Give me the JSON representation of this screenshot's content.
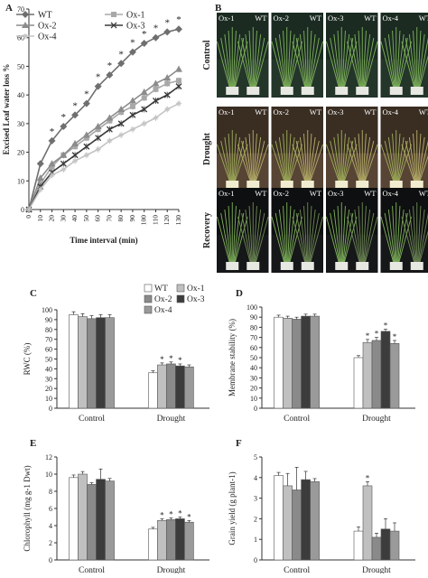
{
  "panels": {
    "A": "A",
    "B": "B",
    "C": "C",
    "D": "D",
    "E": "E",
    "F": "F"
  },
  "photo_panel": {
    "rows": [
      {
        "label": "Control",
        "pairs": [
          [
            "Ox-1",
            "WT"
          ],
          [
            "Ox-2",
            "WT"
          ],
          [
            "Ox-3",
            "WT"
          ],
          [
            "Ox-4",
            "WT"
          ]
        ]
      },
      {
        "label": "Drought",
        "pairs": [
          [
            "Ox-1",
            "WT"
          ],
          [
            "Ox-2",
            "WT"
          ],
          [
            "Ox-3",
            "WT"
          ],
          [
            "Ox-4",
            "WT"
          ]
        ]
      },
      {
        "label": "Recovery",
        "pairs": [
          [
            "Ox-1",
            "WT"
          ],
          [
            "Ox-2",
            "WT"
          ],
          [
            "Ox-3",
            "WT"
          ],
          [
            "Ox-4",
            "WT"
          ]
        ]
      }
    ]
  },
  "chart_data": [
    {
      "id": "A",
      "type": "line",
      "xlabel": "Time interval (min)",
      "ylabel": "Excised Leaf water loss %",
      "xlim": [
        0,
        130
      ],
      "ylim": [
        0,
        70
      ],
      "x": [
        0,
        10,
        20,
        30,
        40,
        50,
        60,
        70,
        80,
        90,
        100,
        110,
        120,
        130
      ],
      "xticks": [
        "0",
        "10",
        "20",
        "30",
        "40",
        "50",
        "60",
        "70",
        "80",
        "90",
        "100",
        "110",
        "120",
        "130"
      ],
      "yticks": [
        0,
        10,
        20,
        30,
        40,
        50,
        60,
        70
      ],
      "series": [
        {
          "name": "WT",
          "color": "#6f6f6f",
          "marker": "diamond",
          "values": [
            0,
            16,
            24,
            29,
            33,
            37,
            43,
            47,
            51,
            55,
            58,
            60,
            62,
            63
          ]
        },
        {
          "name": "Ox-1",
          "color": "#a8a8a8",
          "marker": "square",
          "values": [
            0,
            9,
            15,
            19,
            22,
            25,
            28,
            31,
            34,
            36,
            39,
            42,
            44,
            45
          ]
        },
        {
          "name": "Ox-2",
          "color": "#8c8c8c",
          "marker": "triangle",
          "values": [
            0,
            11,
            16,
            19,
            23,
            26,
            29,
            32,
            35,
            38,
            41,
            44,
            46,
            49
          ]
        },
        {
          "name": "Ox-3",
          "color": "#3a3a3a",
          "marker": "x",
          "values": [
            0,
            8,
            13,
            16,
            19,
            22,
            25,
            28,
            30,
            33,
            35,
            38,
            40,
            43
          ]
        },
        {
          "name": "Ox-4",
          "color": "#c4c4c4",
          "marker": "star",
          "values": [
            0,
            7,
            12,
            14,
            17,
            19,
            21,
            24,
            26,
            28,
            30,
            32,
            35,
            37
          ]
        }
      ],
      "annotations": [
        "*",
        "*",
        "*",
        "*",
        "*",
        "*",
        "*",
        "*",
        "*",
        "*",
        "*",
        "*"
      ]
    },
    {
      "id": "C",
      "type": "bar",
      "ylabel": "RWC (%)",
      "categories": [
        "Control",
        "Drought"
      ],
      "ylim": [
        0,
        100
      ],
      "yticks": [
        0,
        10,
        20,
        30,
        40,
        50,
        60,
        70,
        80,
        90,
        100
      ],
      "series": [
        {
          "name": "WT",
          "color": "#ffffff",
          "values": [
            95,
            36
          ]
        },
        {
          "name": "Ox-1",
          "color": "#c0c0c0",
          "values": [
            93,
            44
          ]
        },
        {
          "name": "Ox-2",
          "color": "#8a8a8a",
          "values": [
            91,
            45
          ]
        },
        {
          "name": "Ox-3",
          "color": "#3c3c3c",
          "values": [
            92,
            43
          ]
        },
        {
          "name": "Ox-4",
          "color": "#9a9a9a",
          "values": [
            92,
            42
          ]
        }
      ],
      "errors": [
        [
          3,
          2
        ],
        [
          3,
          2
        ],
        [
          3,
          2
        ],
        [
          3,
          2
        ],
        [
          3,
          2
        ]
      ],
      "stars": [
        "",
        "*",
        "*",
        "*",
        ""
      ]
    },
    {
      "id": "D",
      "type": "bar",
      "ylabel": "Membrane stability (%)",
      "categories": [
        "Control",
        "Drought"
      ],
      "ylim": [
        0,
        100
      ],
      "yticks": [
        0,
        10,
        20,
        30,
        40,
        50,
        60,
        70,
        80,
        90,
        100
      ],
      "series": [
        {
          "name": "WT",
          "color": "#ffffff",
          "values": [
            90,
            50
          ]
        },
        {
          "name": "Ox-1",
          "color": "#c0c0c0",
          "values": [
            89,
            65
          ]
        },
        {
          "name": "Ox-2",
          "color": "#8a8a8a",
          "values": [
            88,
            67
          ]
        },
        {
          "name": "Ox-3",
          "color": "#3c3c3c",
          "values": [
            91,
            76
          ]
        },
        {
          "name": "Ox-4",
          "color": "#9a9a9a",
          "values": [
            91,
            64
          ]
        }
      ],
      "errors": [
        [
          2,
          2
        ],
        [
          2,
          3
        ],
        [
          2,
          3
        ],
        [
          2,
          2
        ],
        [
          2,
          3
        ]
      ],
      "stars": [
        "",
        "*",
        "*",
        "*",
        "*"
      ]
    },
    {
      "id": "E",
      "type": "bar",
      "ylabel": "Chlorophyll (mg g-1 Dwt)",
      "categories": [
        "Control",
        "Drought"
      ],
      "ylim": [
        0,
        12
      ],
      "yticks": [
        0,
        2,
        4,
        6,
        8,
        10,
        12
      ],
      "series": [
        {
          "name": "WT",
          "color": "#ffffff",
          "values": [
            9.6,
            3.6
          ]
        },
        {
          "name": "Ox-1",
          "color": "#c0c0c0",
          "values": [
            10.0,
            4.6
          ]
        },
        {
          "name": "Ox-2",
          "color": "#8a8a8a",
          "values": [
            8.8,
            4.7
          ]
        },
        {
          "name": "Ox-3",
          "color": "#3c3c3c",
          "values": [
            9.4,
            4.8
          ]
        },
        {
          "name": "Ox-4",
          "color": "#9a9a9a",
          "values": [
            9.2,
            4.4
          ]
        }
      ],
      "errors": [
        [
          0.3,
          0.2
        ],
        [
          0.3,
          0.2
        ],
        [
          0.2,
          0.2
        ],
        [
          1.2,
          0.2
        ],
        [
          0.3,
          0.2
        ]
      ],
      "stars": [
        "",
        "*",
        "*",
        "*",
        "*"
      ]
    },
    {
      "id": "F",
      "type": "bar",
      "ylabel": "Grain yield (g plant-1)",
      "categories": [
        "Control",
        "Drought"
      ],
      "ylim": [
        0,
        5
      ],
      "yticks": [
        0,
        1,
        2,
        3,
        4,
        5
      ],
      "series": [
        {
          "name": "WT",
          "color": "#ffffff",
          "values": [
            4.1,
            1.4
          ]
        },
        {
          "name": "Ox-1",
          "color": "#c0c0c0",
          "values": [
            3.6,
            3.6
          ]
        },
        {
          "name": "Ox-2",
          "color": "#8a8a8a",
          "values": [
            3.4,
            1.1
          ]
        },
        {
          "name": "Ox-3",
          "color": "#3c3c3c",
          "values": [
            3.9,
            1.5
          ]
        },
        {
          "name": "Ox-4",
          "color": "#9a9a9a",
          "values": [
            3.8,
            1.4
          ]
        }
      ],
      "errors": [
        [
          0.15,
          0.2
        ],
        [
          0.6,
          0.2
        ],
        [
          1.1,
          0.2
        ],
        [
          0.4,
          0.5
        ],
        [
          0.15,
          0.4
        ]
      ],
      "stars": [
        "",
        "*",
        "",
        "",
        ""
      ]
    }
  ],
  "bar_legend": [
    "WT",
    "Ox-1",
    "Ox-2",
    "Ox-3",
    "Ox-4"
  ]
}
